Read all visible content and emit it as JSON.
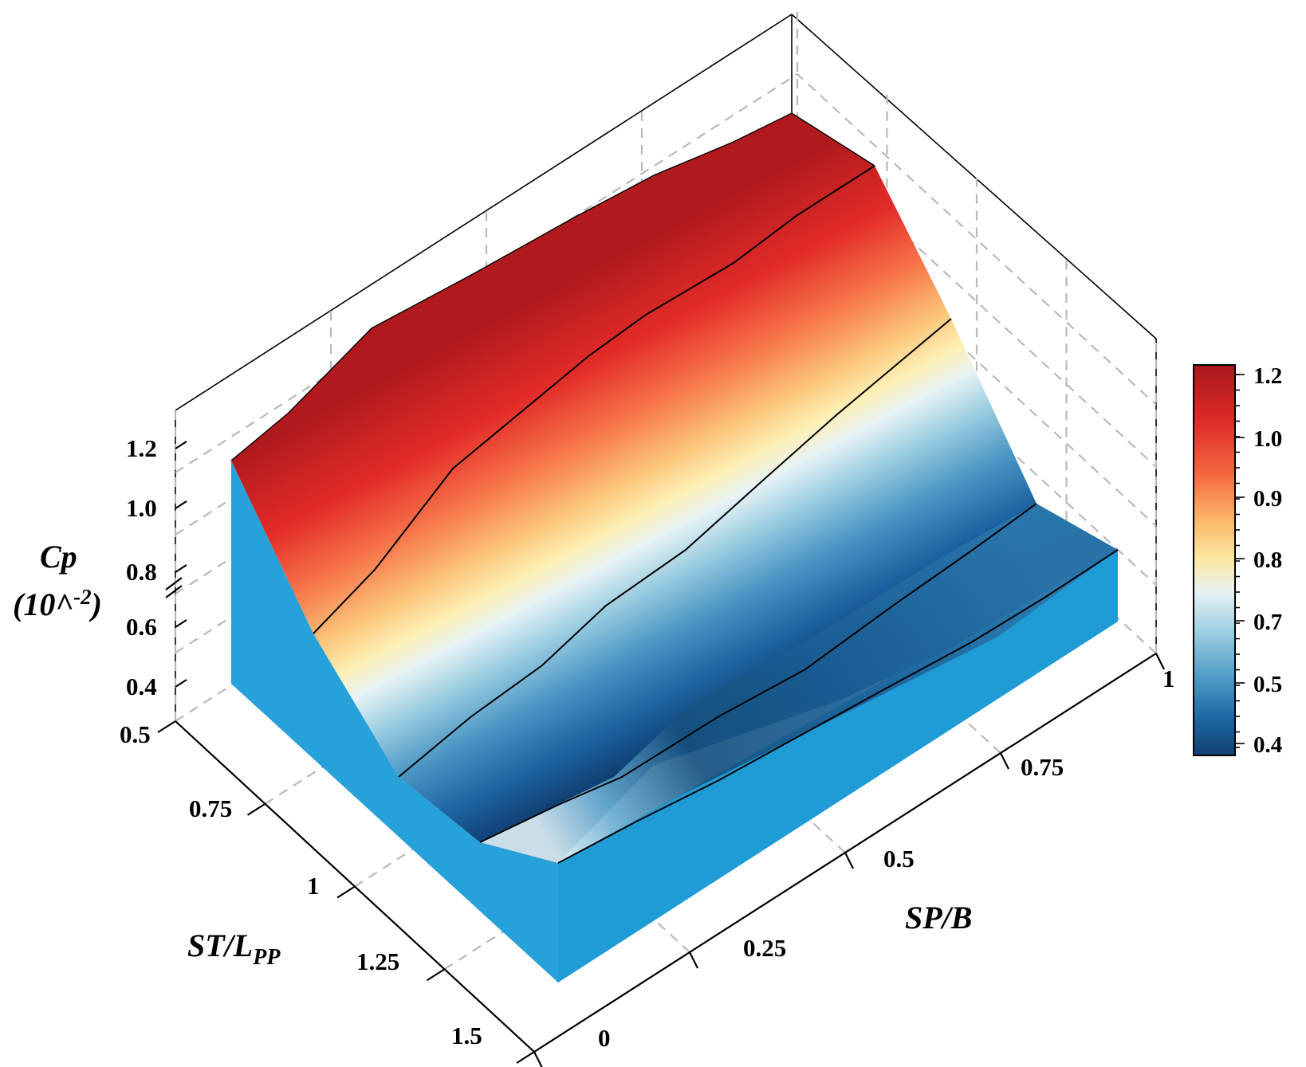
{
  "chart_data": {
    "type": "surface",
    "z_axis": {
      "title": "Cp",
      "unit_prefix": "(10^",
      "unit_exp": "-2",
      "unit_suffix": ")",
      "ticks": [
        "0.4",
        "0.6",
        "0.8",
        "1.0",
        "1.2"
      ],
      "axis_break": true
    },
    "x_axis": {
      "title_main": "ST/L",
      "title_sub": "PP",
      "ticks": [
        "0.5",
        "0.75",
        "1",
        "1.25",
        "1.5"
      ],
      "range": [
        0.5,
        1.5
      ]
    },
    "y_axis": {
      "title": "SP/B",
      "ticks": [
        "0",
        "0.25",
        "0.5",
        "0.75",
        "1"
      ],
      "range": [
        0,
        1
      ]
    },
    "colorbar": {
      "ticks": [
        "1.2",
        "1.0",
        "0.9",
        "0.8",
        "0.7",
        "0.5",
        "0.4"
      ],
      "colors": [
        "#a8181c",
        "#dc2a28",
        "#f5683f",
        "#fbb96a",
        "#fbe9a6",
        "#e8f2f3",
        "#9fd0e2",
        "#4f9cc7",
        "#1f6aa6",
        "#0f3f70"
      ]
    },
    "grid": true,
    "surface_profiles": [
      {
        "st_lpp": 0.5,
        "sp_b": [
          0,
          0.25,
          0.5,
          0.75,
          1.0
        ],
        "cp": [
          1.13,
          1.21,
          1.23,
          1.24,
          1.23
        ]
      },
      {
        "st_lpp": 0.75,
        "sp_b": [
          0,
          0.25,
          0.5,
          0.75,
          1.0
        ],
        "cp": [
          0.7,
          1.0,
          1.09,
          1.14,
          1.17
        ]
      },
      {
        "st_lpp": 1.0,
        "sp_b": [
          0,
          0.25,
          0.5,
          0.75,
          1.0
        ],
        "cp": [
          0.46,
          0.57,
          0.7,
          0.82,
          0.92
        ]
      },
      {
        "st_lpp": 1.25,
        "sp_b": [
          0,
          0.25,
          0.5,
          0.75,
          1.0
        ],
        "cp": [
          0.44,
          0.47,
          0.51,
          0.57,
          0.64
        ]
      },
      {
        "st_lpp": 1.5,
        "sp_b": [
          0,
          0.25,
          0.5,
          0.75,
          1.0
        ],
        "cp": [
          0.49,
          0.45,
          0.49,
          0.53,
          0.6
        ]
      }
    ]
  }
}
